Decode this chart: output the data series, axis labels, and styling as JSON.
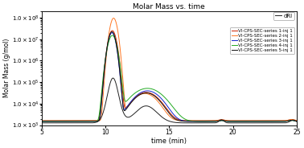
{
  "title": "Molar Mass vs. time",
  "xlabel": "time (min)",
  "ylabel": "Molar Mass (g/mol)",
  "xlim": [
    5.0,
    25.0
  ],
  "ylim_log": [
    1000.0,
    200000000.0
  ],
  "xticks": [
    5.0,
    10.0,
    15.0,
    20.0,
    25.0
  ],
  "series_colors": [
    "#cc2200",
    "#ff7722",
    "#1122cc",
    "#22aa22",
    "#111111"
  ],
  "series_labels": [
    "VI-CPS-SEC-series 1-inj 1",
    "VI-CPS-SEC-series 2-inj 1",
    "VI-CPS-SEC-series 3-inj 1",
    "VI-CPS-SEC-series 4-inj 1",
    "VI-CPS-SEC-series 5-inj 1"
  ],
  "dri_color": "#222222",
  "background_color": "#ffffff"
}
